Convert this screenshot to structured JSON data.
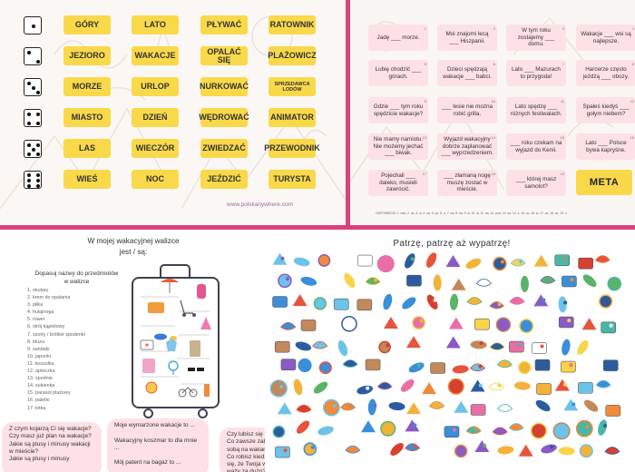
{
  "dice_game": {
    "rows": [
      {
        "die": 1,
        "words": [
          "GÓRY",
          "LATO",
          "PŁYWAĆ",
          "RATOWNIK"
        ]
      },
      {
        "die": 2,
        "words": [
          "JEZIORO",
          "WAKACJE",
          "OPALAĆ SIĘ",
          "PLAŻOWICZ"
        ]
      },
      {
        "die": 3,
        "words": [
          "MORZE",
          "URLOP",
          "NURKOWAĆ",
          "SPRZEDAWCA LODÓW"
        ]
      },
      {
        "die": 4,
        "words": [
          "MIASTO",
          "DZIEŃ",
          "WĘDROWAĆ",
          "ANIMATOR"
        ]
      },
      {
        "die": 5,
        "words": [
          "LAS",
          "WIECZÓR",
          "ZWIEDZAĆ",
          "PRZEWODNIK"
        ]
      },
      {
        "die": 6,
        "words": [
          "WIEŚ",
          "NOC",
          "JEŹDZIĆ",
          "TURYSTA"
        ]
      }
    ],
    "website": "www.polskanywhere.com"
  },
  "fill_game": {
    "cards": [
      {
        "num": "1",
        "text": "Jadę ___ morze."
      },
      {
        "num": "2",
        "text": "Moi znajomi lecą ___ Hiszpanii."
      },
      {
        "num": "3",
        "text": "W tym roku zostajemy ___ domu."
      },
      {
        "num": "4",
        "text": "Wakacje ___ wsi są najlepsze."
      },
      {
        "num": "5",
        "text": "Lubię chodzić ___ górach."
      },
      {
        "num": "6",
        "text": "Dzieci spędzają wakacje ___ babci."
      },
      {
        "num": "7",
        "text": "Lato ___ Mazurach to przygoda!"
      },
      {
        "num": "8",
        "text": "Harcerze często jeżdżą ___ obozy."
      },
      {
        "num": "9",
        "text": "Gdzie ___ tym roku spędzicie wakacje?"
      },
      {
        "num": "10",
        "text": "___ lesie nie można robić grilla."
      },
      {
        "num": "11",
        "text": "Lato spędzę ___ różnych festiwalach."
      },
      {
        "num": "12",
        "text": "Spałeś kiedyś ___ gołym niebem?"
      },
      {
        "num": "13",
        "text": "Nie mamy namiotu. Nie możemy jechać ___ biwak."
      },
      {
        "num": "14",
        "text": "Wyjazd wakacyjny dobrze zaplanować ___ wyprzedzeniem."
      },
      {
        "num": "15",
        "text": "___ roku czekam na wyjazd do Kenii."
      },
      {
        "num": "16",
        "text": "Lato ___ Polsce bywa kapryśne."
      },
      {
        "num": "17",
        "text": "Pojechali ___ daleko, musieli zawrócić."
      },
      {
        "num": "18",
        "text": "___ złamaną nogę muszę zostać w mieście."
      },
      {
        "num": "19",
        "text": "___ której masz samolot?"
      }
    ],
    "finish_label": "META",
    "answers": "ODPOWIEDZI: 1. nad, 2. do, 3. w, 4. na, 5. po, 6. u, 7. na, 8. na, 9. w, 10. w, 11. na, 12. pod, 13. na, 14. z, 15. co, 16. w, 17. za, 18. ze, 19. o"
  },
  "suitcase": {
    "title_line1": "W mojej wakacyjnej walizce",
    "title_line2": "jest / są:",
    "instruction": "Dopasuj nazwy do przedmiotów w walizce",
    "items": [
      "1. okulary",
      "2. krem do opalania",
      "3. piłka",
      "4. hulajnoga",
      "5. rower",
      "6. strój kąpielowy",
      "7. szorty / krótkie spodenki",
      "8. bluza",
      "9. sandały",
      "10. japonki",
      "11. koszulka",
      "12. apteczka",
      "13. spodnie",
      "14. sukienka",
      "15. parasol plażowy",
      "16. paletki",
      "17. lotka"
    ],
    "bubbles": [
      "Z czym kojarzą Ci się wakacje?\nCzy masz już plan na wakacje?\nJakie są plusy i minusy wakacji w mieście?\nJakie są plusy i minusy",
      "Moje wymarzone wakacje to ...\n\nWakacyjny koszmar to dla mnie ...\n\nMój patent na bagaż to ...",
      "Czy lubisz się ...\nCo zawsze zab... sobą na wakan...\nCo robisz kied...\nsię, że Twoja w...\nważy za dużo?"
    ]
  },
  "search": {
    "title": "Patrzę, patrzę aż wypatrzę!"
  },
  "colors": {
    "divider": "#d9427d",
    "word_tile": "#f9d94a",
    "card": "#fde1e6",
    "suitcase_outline": "#3f4151"
  }
}
